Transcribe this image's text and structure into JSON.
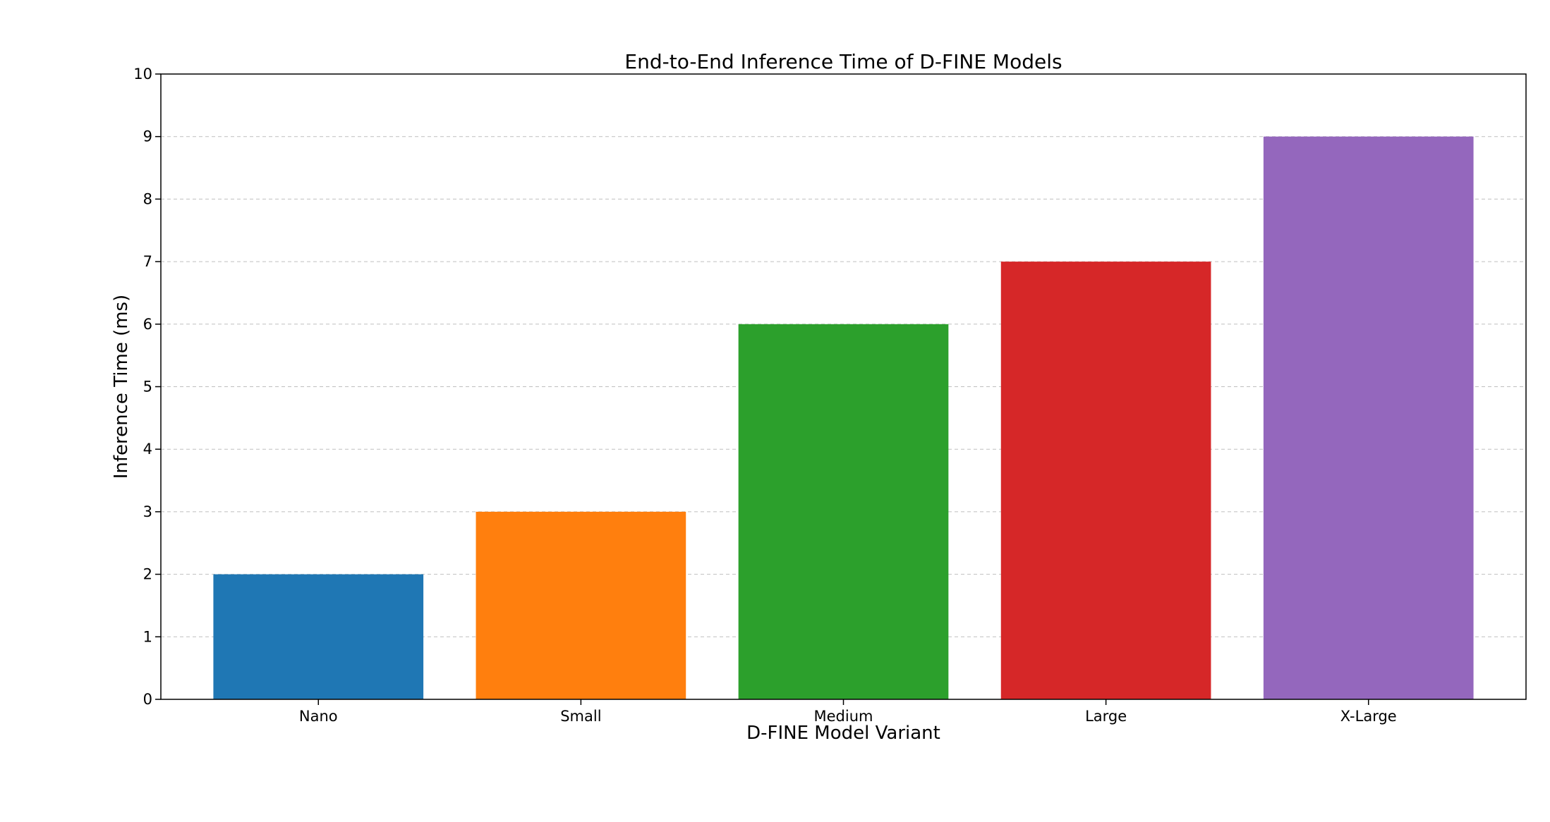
{
  "chart_data": {
    "type": "bar",
    "title": "End-to-End Inference Time of D-FINE Models",
    "xlabel": "D-FINE Model Variant",
    "ylabel": "Inference Time (ms)",
    "categories": [
      "Nano",
      "Small",
      "Medium",
      "Large",
      "X-Large"
    ],
    "values": [
      2,
      3,
      6,
      7,
      9
    ],
    "colors": [
      "#1f77b4",
      "#ff7f0e",
      "#2ca02c",
      "#d62728",
      "#9467bd"
    ],
    "ylim": [
      0,
      10
    ],
    "yticks": [
      0,
      1,
      2,
      3,
      4,
      5,
      6,
      7,
      8,
      9,
      10
    ],
    "grid": "y-dashed",
    "legend": "none"
  }
}
